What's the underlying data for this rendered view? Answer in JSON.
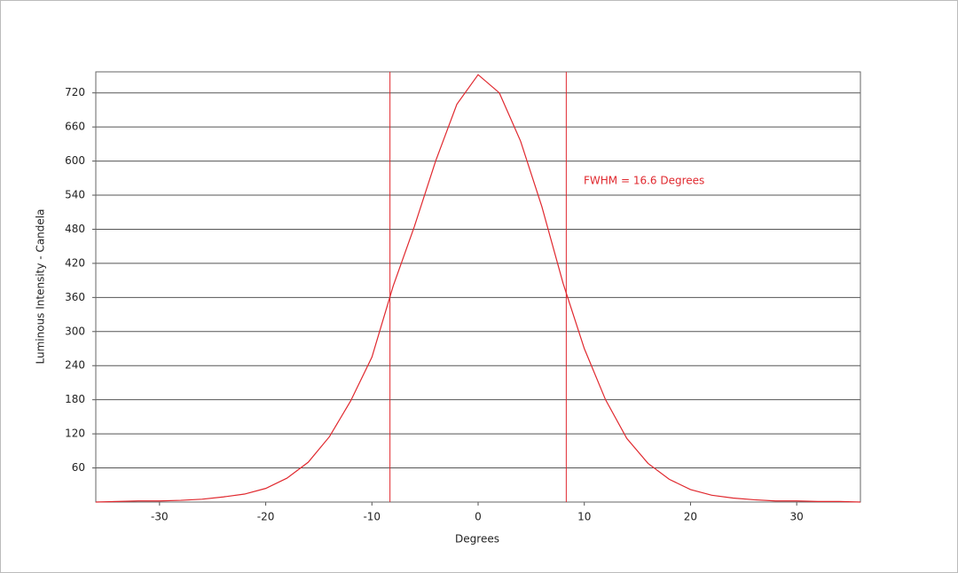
{
  "chart_data": {
    "type": "line",
    "x_label": "Degrees",
    "y_label": "Luminous Intensity - Candela",
    "annotation": "FWHM = 16.6 Degrees",
    "x": [
      -36,
      -34,
      -32,
      -30,
      -28,
      -26,
      -24,
      -22,
      -20,
      -18,
      -16,
      -14,
      -12,
      -10,
      -8,
      -6,
      -4,
      -2,
      0,
      2,
      4,
      6,
      8,
      10,
      12,
      14,
      16,
      18,
      20,
      22,
      24,
      26,
      28,
      30,
      32,
      34,
      36
    ],
    "series": [
      {
        "color": "#e0282e",
        "values": [
          0,
          1,
          2,
          2,
          3,
          5,
          9,
          14,
          24,
          42,
          70,
          115,
          178,
          255,
          380,
          485,
          600,
          700,
          752,
          720,
          635,
          520,
          385,
          270,
          180,
          112,
          68,
          40,
          22,
          12,
          7,
          4,
          2,
          2,
          1,
          1,
          0
        ]
      }
    ],
    "vlines": [
      -8.3,
      8.3
    ],
    "xlim": [
      -36,
      36
    ],
    "ylim": [
      0,
      757
    ],
    "xticks": [
      -30,
      -20,
      -10,
      0,
      10,
      20,
      30
    ],
    "yticks": [
      60,
      120,
      180,
      240,
      300,
      360,
      420,
      480,
      540,
      600,
      660,
      720
    ],
    "grid": true
  }
}
